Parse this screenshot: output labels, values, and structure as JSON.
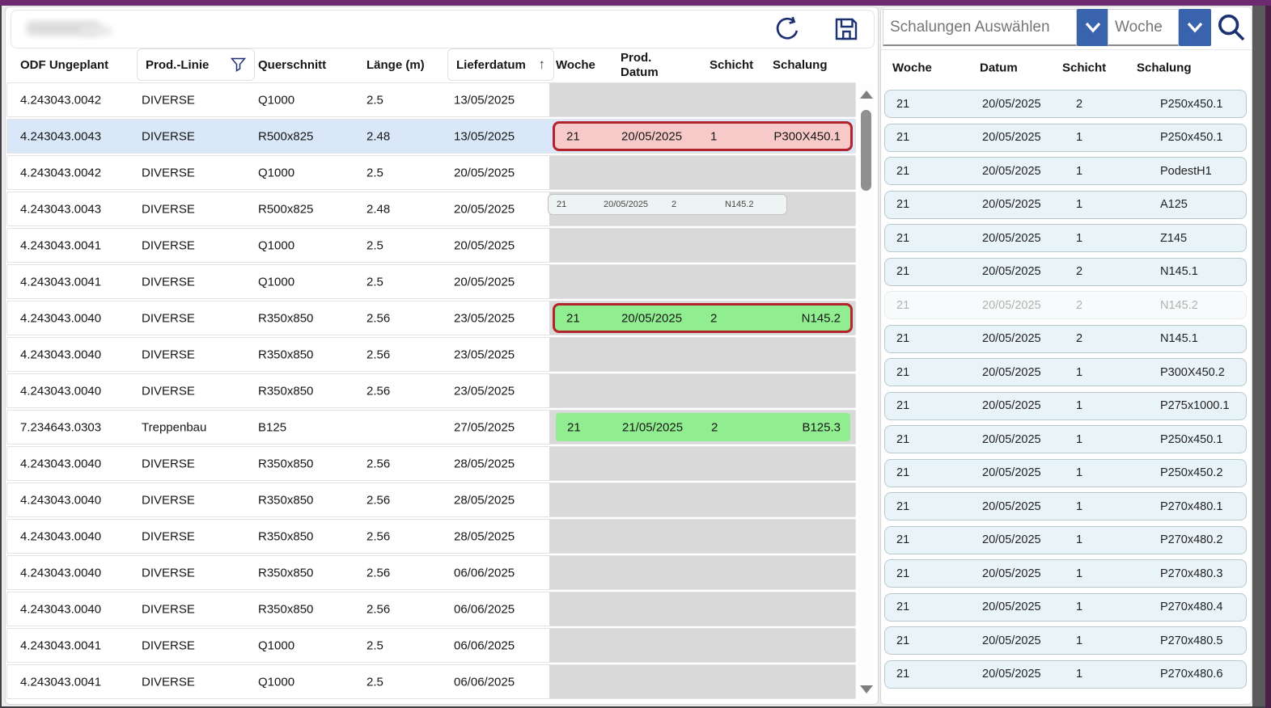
{
  "colors": {
    "accent-purple": "#6e2a71",
    "accent-blue": "#3a63ad",
    "icon-navy": "#1b3070",
    "pill-red-bg": "#f8c9c9",
    "pill-red-border": "#b3232b",
    "pill-green-bg": "#90ee90",
    "card-bg": "#e9f4f8",
    "card-border": "#b9c8d0",
    "selected-row-bg": "#d9e7f8",
    "gray-cell-bg": "#d9d9d9"
  },
  "toolbar": {
    "refresh_icon": "refresh-icon",
    "save_icon": "save-icon"
  },
  "left_table": {
    "columns": [
      {
        "id": "odf",
        "label": "ODF Ungeplant"
      },
      {
        "id": "linie",
        "label": "Prod.-Linie",
        "filter_icon": "filter-funnel-icon"
      },
      {
        "id": "querschnitt",
        "label": "Querschnitt"
      },
      {
        "id": "laenge",
        "label": "Länge (m)"
      },
      {
        "id": "lieferdatum",
        "label": "Lieferdatum",
        "sort": "asc",
        "sort_glyph": "↑"
      },
      {
        "id": "woche",
        "label": "Woche"
      },
      {
        "id": "prod_datum",
        "label": "Prod. Datum"
      },
      {
        "id": "schicht",
        "label": "Schicht"
      },
      {
        "id": "schalung",
        "label": "Schalung"
      }
    ],
    "rows": [
      {
        "odf": "4.243043.0042",
        "linie": "DIVERSE",
        "querschnitt": "Q1000",
        "laenge": "2.5",
        "lieferdatum": "13/05/2025",
        "selected": false,
        "pill": null
      },
      {
        "odf": "4.243043.0043",
        "linie": "DIVERSE",
        "querschnitt": "R500x825",
        "laenge": "2.48",
        "lieferdatum": "13/05/2025",
        "selected": true,
        "pill": {
          "woche": "21",
          "datum": "20/05/2025",
          "schicht": "1",
          "schalung": "P300X450.1",
          "style": "red"
        }
      },
      {
        "odf": "4.243043.0042",
        "linie": "DIVERSE",
        "querschnitt": "Q1000",
        "laenge": "2.5",
        "lieferdatum": "20/05/2025",
        "selected": false,
        "pill": null
      },
      {
        "odf": "4.243043.0043",
        "linie": "DIVERSE",
        "querschnitt": "R500x825",
        "laenge": "2.48",
        "lieferdatum": "20/05/2025",
        "selected": false,
        "pill": {
          "woche": "21",
          "datum": "20/05/2025",
          "schicht": "2",
          "schalung": "N145.2",
          "style": "ghost"
        }
      },
      {
        "odf": "4.243043.0041",
        "linie": "DIVERSE",
        "querschnitt": "Q1000",
        "laenge": "2.5",
        "lieferdatum": "20/05/2025",
        "selected": false,
        "pill": null
      },
      {
        "odf": "4.243043.0041",
        "linie": "DIVERSE",
        "querschnitt": "Q1000",
        "laenge": "2.5",
        "lieferdatum": "20/05/2025",
        "selected": false,
        "pill": null
      },
      {
        "odf": "4.243043.0040",
        "linie": "DIVERSE",
        "querschnitt": "R350x850",
        "laenge": "2.56",
        "lieferdatum": "23/05/2025",
        "selected": false,
        "pill": {
          "woche": "21",
          "datum": "20/05/2025",
          "schicht": "2",
          "schalung": "N145.2",
          "style": "green-red-border"
        }
      },
      {
        "odf": "4.243043.0040",
        "linie": "DIVERSE",
        "querschnitt": "R350x850",
        "laenge": "2.56",
        "lieferdatum": "23/05/2025",
        "selected": false,
        "pill": null
      },
      {
        "odf": "4.243043.0040",
        "linie": "DIVERSE",
        "querschnitt": "R350x850",
        "laenge": "2.56",
        "lieferdatum": "23/05/2025",
        "selected": false,
        "pill": null
      },
      {
        "odf": "7.234643.0303",
        "linie": "Treppenbau",
        "querschnitt": "B125",
        "laenge": "",
        "lieferdatum": "27/05/2025",
        "selected": false,
        "pill": {
          "woche": "21",
          "datum": "21/05/2025",
          "schicht": "2",
          "schalung": "B125.3",
          "style": "green"
        }
      },
      {
        "odf": "4.243043.0040",
        "linie": "DIVERSE",
        "querschnitt": "R350x850",
        "laenge": "2.56",
        "lieferdatum": "28/05/2025",
        "selected": false,
        "pill": null
      },
      {
        "odf": "4.243043.0040",
        "linie": "DIVERSE",
        "querschnitt": "R350x850",
        "laenge": "2.56",
        "lieferdatum": "28/05/2025",
        "selected": false,
        "pill": null
      },
      {
        "odf": "4.243043.0040",
        "linie": "DIVERSE",
        "querschnitt": "R350x850",
        "laenge": "2.56",
        "lieferdatum": "28/05/2025",
        "selected": false,
        "pill": null
      },
      {
        "odf": "4.243043.0040",
        "linie": "DIVERSE",
        "querschnitt": "R350x850",
        "laenge": "2.56",
        "lieferdatum": "06/06/2025",
        "selected": false,
        "pill": null
      },
      {
        "odf": "4.243043.0040",
        "linie": "DIVERSE",
        "querschnitt": "R350x850",
        "laenge": "2.56",
        "lieferdatum": "06/06/2025",
        "selected": false,
        "pill": null
      },
      {
        "odf": "4.243043.0041",
        "linie": "DIVERSE",
        "querschnitt": "Q1000",
        "laenge": "2.5",
        "lieferdatum": "06/06/2025",
        "selected": false,
        "pill": null
      },
      {
        "odf": "4.243043.0041",
        "linie": "DIVERSE",
        "querschnitt": "Q1000",
        "laenge": "2.5",
        "lieferdatum": "06/06/2025",
        "selected": false,
        "pill": null
      }
    ]
  },
  "right_panel": {
    "filters": {
      "schalungen_placeholder": "Schalungen Auswählen",
      "woche_placeholder": "Woche",
      "search_icon": "search-icon",
      "chevron_icon": "chevron-down-icon"
    },
    "columns": [
      "Woche",
      "Datum",
      "Schicht",
      "Schalung"
    ],
    "cards": [
      {
        "woche": "21",
        "datum": "20/05/2025",
        "schicht": "2",
        "schalung": "P250x450.1",
        "ghosted": false
      },
      {
        "woche": "21",
        "datum": "20/05/2025",
        "schicht": "1",
        "schalung": "P250x450.1",
        "ghosted": false
      },
      {
        "woche": "21",
        "datum": "20/05/2025",
        "schicht": "1",
        "schalung": "PodestH1",
        "ghosted": false
      },
      {
        "woche": "21",
        "datum": "20/05/2025",
        "schicht": "1",
        "schalung": "A125",
        "ghosted": false
      },
      {
        "woche": "21",
        "datum": "20/05/2025",
        "schicht": "1",
        "schalung": "Z145",
        "ghosted": false
      },
      {
        "woche": "21",
        "datum": "20/05/2025",
        "schicht": "2",
        "schalung": "N145.1",
        "ghosted": false
      },
      {
        "woche": "21",
        "datum": "20/05/2025",
        "schicht": "2",
        "schalung": "N145.2",
        "ghosted": true
      },
      {
        "woche": "21",
        "datum": "20/05/2025",
        "schicht": "2",
        "schalung": "N145.1",
        "ghosted": false
      },
      {
        "woche": "21",
        "datum": "20/05/2025",
        "schicht": "1",
        "schalung": "P300X450.2",
        "ghosted": false
      },
      {
        "woche": "21",
        "datum": "20/05/2025",
        "schicht": "1",
        "schalung": "P275x1000.1",
        "ghosted": false
      },
      {
        "woche": "21",
        "datum": "20/05/2025",
        "schicht": "1",
        "schalung": "P250x450.1",
        "ghosted": false
      },
      {
        "woche": "21",
        "datum": "20/05/2025",
        "schicht": "1",
        "schalung": "P250x450.2",
        "ghosted": false
      },
      {
        "woche": "21",
        "datum": "20/05/2025",
        "schicht": "1",
        "schalung": "P270x480.1",
        "ghosted": false
      },
      {
        "woche": "21",
        "datum": "20/05/2025",
        "schicht": "1",
        "schalung": "P270x480.2",
        "ghosted": false
      },
      {
        "woche": "21",
        "datum": "20/05/2025",
        "schicht": "1",
        "schalung": "P270x480.3",
        "ghosted": false
      },
      {
        "woche": "21",
        "datum": "20/05/2025",
        "schicht": "1",
        "schalung": "P270x480.4",
        "ghosted": false
      },
      {
        "woche": "21",
        "datum": "20/05/2025",
        "schicht": "1",
        "schalung": "P270x480.5",
        "ghosted": false
      },
      {
        "woche": "21",
        "datum": "20/05/2025",
        "schicht": "1",
        "schalung": "P270x480.6",
        "ghosted": false
      }
    ]
  }
}
